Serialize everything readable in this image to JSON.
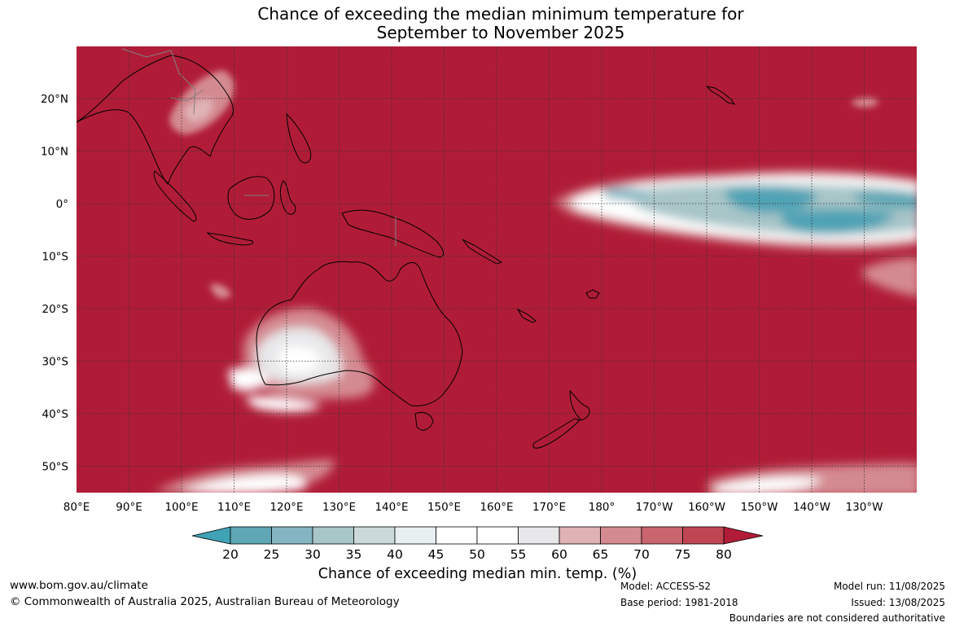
{
  "title": {
    "line1": "Chance of exceeding the median minimum temperature for",
    "line2": "September to November 2025"
  },
  "map": {
    "background_color": "#b01c37",
    "lat_labels": [
      "20°N",
      "10°N",
      "0°",
      "10°S",
      "20°S",
      "30°S",
      "40°S",
      "50°S"
    ],
    "lon_labels": [
      "80°E",
      "90°E",
      "100°E",
      "110°E",
      "120°E",
      "130°E",
      "140°E",
      "150°E",
      "160°E",
      "170°E",
      "180°",
      "170°W",
      "160°W",
      "150°W",
      "140°W",
      "130°W"
    ]
  },
  "colorbar": {
    "ticks": [
      "20",
      "25",
      "30",
      "35",
      "40",
      "45",
      "50",
      "55",
      "60",
      "65",
      "70",
      "75",
      "80"
    ],
    "colors": [
      "#5fa7b5",
      "#85b5c2",
      "#a8c5c8",
      "#ccd9da",
      "#e8eff1",
      "#ffffff",
      "#ffffff",
      "#e8e8ea",
      "#dfb2b6",
      "#d48a91",
      "#c9656f",
      "#bf4552"
    ],
    "low_color": "#3fa3b5",
    "high_color": "#b01c37",
    "label": "Chance of exceeding median min. temp. (%)"
  },
  "footer": {
    "website": "www.bom.gov.au/climate",
    "copyright": "© Commonwealth of Australia 2025, Australian Bureau of Meteorology",
    "model": "Model: ACCESS-S2",
    "base_period": "Base period: 1981-2018",
    "model_run": "Model run: 11/08/2025",
    "issued": "Issued: 13/08/2025",
    "disclaimer": "Boundaries are not considered authoritative"
  }
}
